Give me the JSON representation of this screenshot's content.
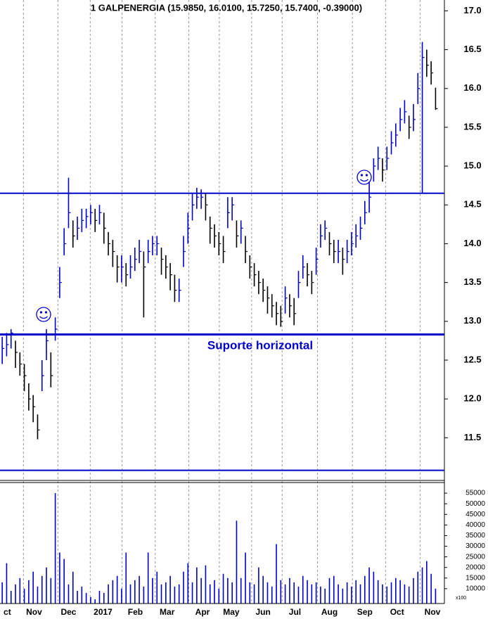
{
  "chart_data": [
    {
      "type": "ohlc",
      "title": "1 GALPENERGIA (15.9850, 16.0100, 15.7250, 15.7400, -0.39000)",
      "annotation": "Suporte horizontal",
      "color": "#0000cc",
      "down_color": "#000000",
      "close": [
        12.65,
        12.7,
        12.85,
        12.6,
        12.45,
        12.3,
        12.0,
        11.9,
        11.6,
        12.3,
        12.75,
        12.3,
        12.9,
        13.5,
        14.0,
        14.4,
        14.1,
        14.2,
        14.3,
        14.35,
        14.4,
        14.3,
        14.4,
        14.2,
        14.0,
        13.9,
        13.7,
        13.7,
        13.6,
        13.7,
        13.8,
        13.9,
        13.7,
        13.9,
        14.0,
        14.0,
        13.8,
        13.7,
        13.6,
        13.4,
        13.4,
        13.9,
        14.2,
        14.5,
        14.6,
        14.6,
        14.5,
        14.2,
        14.1,
        14.0,
        13.9,
        14.4,
        14.5,
        14.1,
        14.2,
        13.9,
        13.7,
        13.6,
        13.5,
        13.4,
        13.3,
        13.2,
        13.1,
        13.0,
        13.3,
        13.2,
        13.1,
        13.5,
        13.7,
        13.6,
        13.5,
        13.8,
        14.1,
        14.2,
        14.0,
        13.9,
        13.9,
        13.8,
        13.9,
        14.0,
        14.1,
        14.2,
        14.4,
        14.6,
        15.0,
        15.1,
        14.95,
        15.1,
        15.3,
        15.4,
        15.6,
        15.7,
        15.5,
        15.6,
        16.0,
        16.4,
        16.3,
        16.2,
        15.74
      ],
      "high": [
        12.8,
        12.85,
        12.9,
        12.75,
        12.6,
        12.45,
        12.2,
        12.05,
        11.8,
        12.5,
        12.9,
        12.6,
        13.05,
        13.7,
        14.2,
        14.85,
        14.3,
        14.35,
        14.45,
        14.45,
        14.5,
        14.45,
        14.5,
        14.4,
        14.15,
        14.05,
        13.85,
        13.85,
        13.75,
        13.85,
        13.95,
        14.05,
        13.9,
        14.05,
        14.1,
        14.1,
        13.95,
        13.85,
        13.75,
        13.6,
        13.55,
        14.1,
        14.4,
        14.65,
        14.72,
        14.7,
        14.65,
        14.35,
        14.25,
        14.15,
        14.1,
        14.6,
        14.6,
        14.3,
        14.3,
        14.1,
        13.85,
        13.75,
        13.65,
        13.55,
        13.45,
        13.35,
        13.25,
        13.2,
        13.45,
        13.35,
        13.3,
        13.65,
        13.85,
        13.75,
        13.65,
        13.95,
        14.25,
        14.3,
        14.15,
        14.05,
        14.05,
        13.95,
        14.05,
        14.15,
        14.25,
        14.35,
        14.55,
        14.8,
        15.1,
        15.25,
        15.1,
        15.25,
        15.45,
        15.55,
        15.75,
        15.85,
        15.65,
        15.8,
        16.2,
        16.6,
        16.5,
        16.35,
        16.01
      ],
      "low": [
        12.45,
        12.55,
        12.65,
        12.4,
        12.3,
        12.1,
        11.85,
        11.7,
        11.48,
        12.1,
        12.5,
        12.15,
        12.75,
        13.3,
        13.85,
        14.2,
        13.95,
        14.05,
        14.15,
        14.2,
        14.25,
        14.15,
        14.25,
        14.0,
        13.85,
        13.7,
        13.5,
        13.5,
        13.45,
        13.55,
        13.65,
        13.75,
        13.05,
        13.75,
        13.85,
        13.85,
        13.6,
        13.55,
        13.4,
        13.25,
        13.25,
        13.7,
        14.0,
        14.3,
        14.45,
        14.45,
        14.3,
        14.0,
        13.95,
        13.85,
        13.75,
        14.2,
        14.3,
        13.95,
        14.0,
        13.75,
        13.55,
        13.45,
        13.35,
        13.25,
        13.1,
        13.05,
        12.95,
        12.93,
        13.1,
        13.05,
        12.95,
        13.3,
        13.55,
        13.45,
        13.35,
        13.6,
        13.95,
        14.05,
        13.85,
        13.75,
        13.75,
        13.6,
        13.75,
        13.85,
        13.95,
        14.05,
        14.25,
        14.4,
        14.8,
        14.95,
        14.8,
        14.95,
        15.15,
        15.25,
        15.45,
        15.55,
        15.35,
        15.45,
        15.8,
        14.65,
        16.15,
        16.05,
        15.725
      ],
      "hlines": [
        14.65,
        12.83,
        11.08
      ],
      "ylim": [
        10.95,
        17.14
      ],
      "yticks": [
        11.5,
        {
          "value": 12,
          "label": "12.0"
        },
        12.5,
        {
          "value": 13,
          "label": "13.0"
        },
        13.5,
        {
          "value": 14,
          "label": "14.0"
        },
        14.5,
        {
          "value": 15,
          "label": "15.0"
        },
        15.5,
        {
          "value": 16,
          "label": "16.0"
        },
        16.5,
        {
          "value": 17,
          "label": "17.0"
        }
      ],
      "xlim": [
        -0.5,
        100
      ],
      "xgrid": [
        4.8,
        12.6,
        19.9,
        27.1,
        34.6,
        42.2,
        49.1,
        56.4,
        63.3,
        71.3,
        79.2,
        86.7,
        94.5
      ],
      "xticks": [
        {
          "value": 0.3,
          "label": "ct"
        },
        {
          "value": 7.2,
          "label": "Nov"
        },
        {
          "value": 15,
          "label": "Dec"
        },
        {
          "value": 22.8,
          "label": "2017"
        },
        {
          "value": 30.1,
          "label": "Feb"
        },
        {
          "value": 37.3,
          "label": "Mar"
        },
        {
          "value": 45.3,
          "label": "Apr"
        },
        {
          "value": 51.8,
          "label": "May"
        },
        {
          "value": 59,
          "label": "Jun"
        },
        {
          "value": 66.2,
          "label": "Jul"
        },
        {
          "value": 74,
          "label": "Aug"
        },
        {
          "value": 82,
          "label": "Sep"
        },
        {
          "value": 89.3,
          "label": "Oct"
        },
        {
          "value": 97.3,
          "label": "Nov"
        }
      ]
    },
    {
      "type": "bar",
      "unit_label": "x100",
      "color": "#0000cc",
      "values": [
        13000,
        22000,
        9000,
        12000,
        15000,
        10000,
        14000,
        18000,
        11000,
        16000,
        20000,
        15000,
        55000,
        27000,
        24000,
        12000,
        18000,
        9000,
        11000,
        8000,
        6000,
        5000,
        9000,
        8000,
        12000,
        14000,
        16000,
        10000,
        27000,
        12000,
        14000,
        16000,
        11000,
        27000,
        15000,
        18000,
        12000,
        13000,
        16000,
        11000,
        12000,
        18000,
        22000,
        13000,
        20000,
        15000,
        21000,
        12000,
        14000,
        10000,
        17000,
        15000,
        13000,
        42000,
        15000,
        27000,
        13000,
        12000,
        20000,
        16000,
        13000,
        11000,
        31000,
        14000,
        12000,
        15000,
        13000,
        11000,
        16000,
        14000,
        12000,
        13000,
        11000,
        10000,
        15000,
        16000,
        12000,
        10000,
        13000,
        11000,
        14000,
        12000,
        16000,
        20000,
        18000,
        14000,
        12000,
        11000,
        13000,
        15000,
        14000,
        12000,
        11000,
        15000,
        18000,
        20000,
        23000,
        17000,
        10000
      ],
      "ylim": [
        3000,
        60000
      ],
      "yticks": [
        10000,
        15000,
        20000,
        25000,
        30000,
        35000,
        40000,
        45000,
        50000,
        55000
      ]
    }
  ]
}
